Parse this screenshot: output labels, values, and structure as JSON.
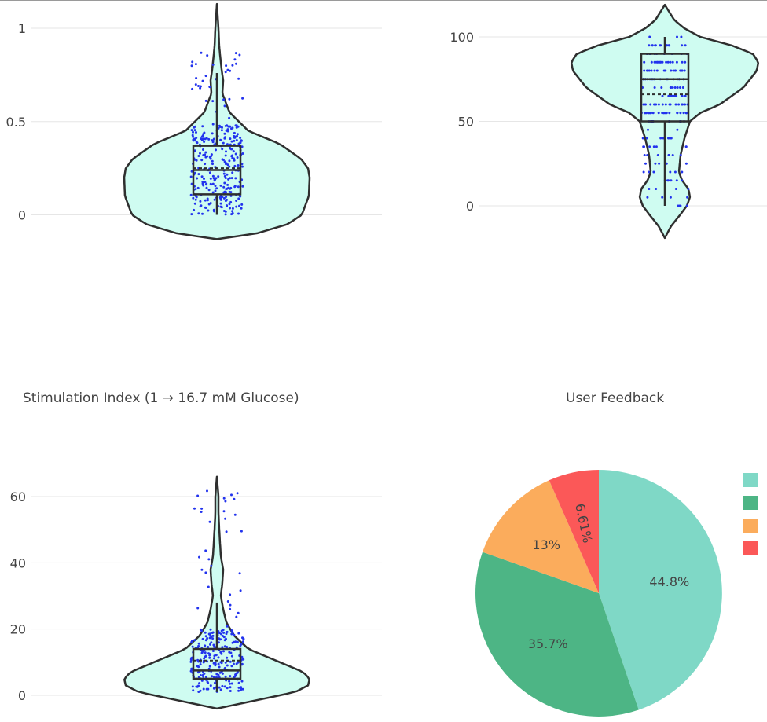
{
  "colors": {
    "violin_fill": "#cffcf1",
    "violin_line": "#2f2f2f",
    "points": "#2233ee",
    "grid": "#e6e6e6",
    "tick_text": "#444444",
    "pie": [
      "#7fd8c6",
      "#4db585",
      "#fbac5c",
      "#fb5858"
    ]
  },
  "titles": {
    "top_left": "",
    "top_right": "",
    "bottom_left": "Stimulation Index (1 → 16.7 mM Glucose)",
    "bottom_right": "User Feedback"
  },
  "chart_data": [
    {
      "type": "violin",
      "title": "",
      "ylim": [
        -0.13,
        1.13
      ],
      "y_ticks": [
        0,
        0.5,
        1
      ],
      "y_tick_labels": [
        "0",
        "0.5",
        "1"
      ],
      "grid": true,
      "box": {
        "q1": 0.11,
        "median": 0.24,
        "mean": 0.25,
        "q3": 0.37,
        "whisker_low": 0,
        "whisker_high": 0.76
      },
      "data_range": [
        -0.13,
        1.13
      ],
      "points_visible": true
    },
    {
      "type": "violin",
      "title": "",
      "ylim": [
        -19,
        119
      ],
      "y_ticks": [
        0,
        50,
        100
      ],
      "y_tick_labels": [
        "0",
        "50",
        "100"
      ],
      "grid": true,
      "box": {
        "q1": 50,
        "median": 75,
        "mean": 66,
        "q3": 90,
        "whisker_low": 0,
        "whisker_high": 100
      },
      "data_range": [
        -19,
        119
      ],
      "points_visible": true
    },
    {
      "type": "violin",
      "title": "Stimulation Index (1 → 16.7 mM Glucose)",
      "ylim": [
        -4,
        67
      ],
      "y_ticks": [
        0,
        20,
        40,
        60
      ],
      "y_tick_labels": [
        "0",
        "20",
        "40",
        "60"
      ],
      "grid": true,
      "box": {
        "q1": 5,
        "median": 7.5,
        "mean": 10.5,
        "q3": 14,
        "whisker_low": 1,
        "whisker_high": 28
      },
      "data_range": [
        -4,
        66
      ],
      "points_visible": true
    },
    {
      "type": "pie",
      "title": "User Feedback",
      "values": [
        44.8,
        35.7,
        13,
        6.61
      ],
      "labels": [
        "44.8%",
        "35.7%",
        "13%",
        "6.61%"
      ],
      "legend": "right",
      "legend_entries": [
        "",
        "",
        "",
        ""
      ]
    }
  ]
}
